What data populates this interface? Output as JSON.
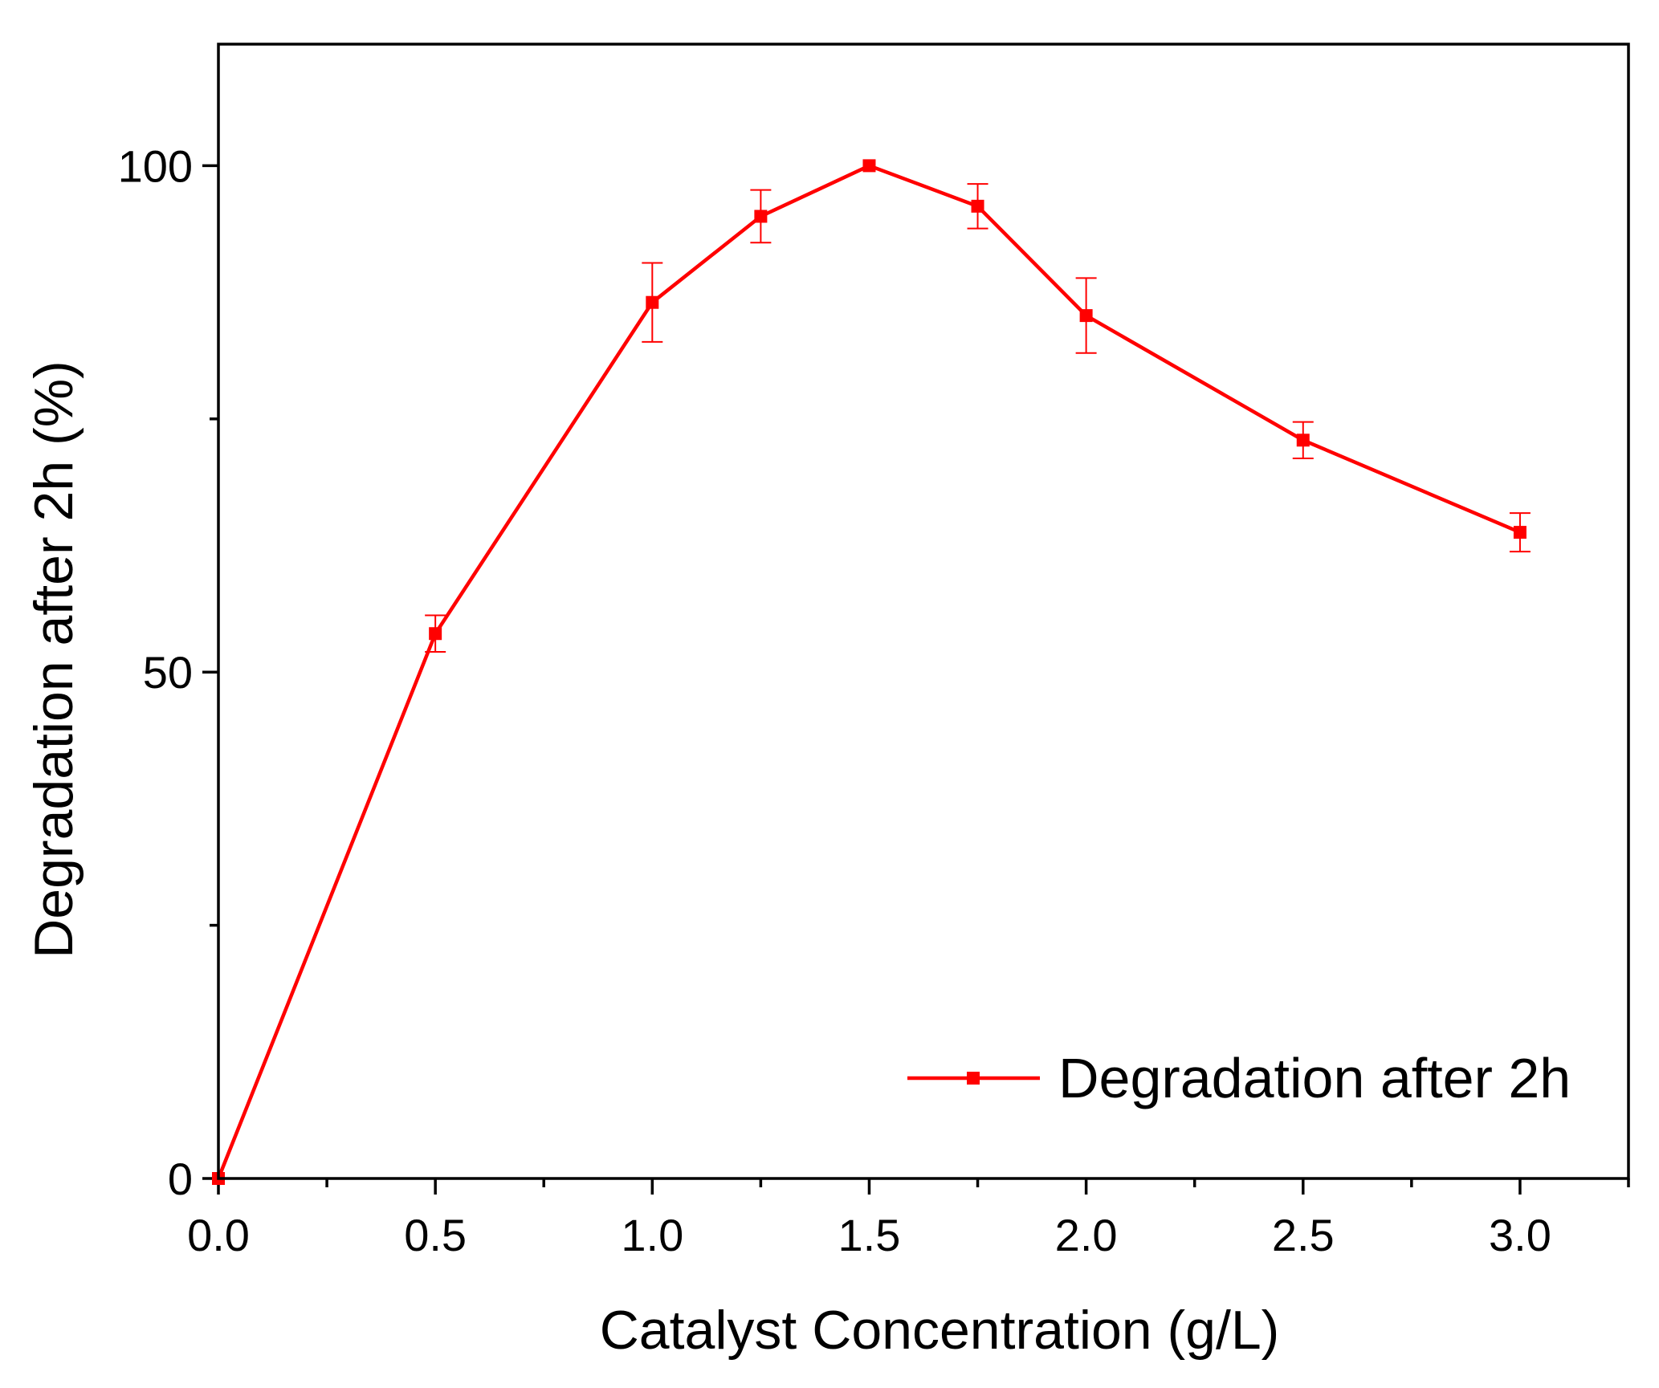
{
  "chart_data": {
    "type": "line",
    "title": "",
    "xlabel": "Catalyst Concentration (g/L)",
    "ylabel": "Degradation after 2h (%)",
    "xlim": [
      0.0,
      3.25
    ],
    "ylim": [
      0,
      112
    ],
    "x_ticks": [
      0.0,
      0.5,
      1.0,
      1.5,
      2.0,
      2.5,
      3.0
    ],
    "x_tick_labels": [
      "0.0",
      "0.5",
      "1.0",
      "1.5",
      "2.0",
      "2.5",
      "3.0"
    ],
    "x_minor_ticks": [
      0.25,
      0.75,
      1.25,
      1.75,
      2.25,
      2.75,
      3.25
    ],
    "y_ticks": [
      0,
      50,
      100
    ],
    "y_tick_labels": [
      "0",
      "50",
      "100"
    ],
    "y_minor_ticks": [
      25,
      75
    ],
    "grid": false,
    "legend_position": "bottom-right",
    "series": [
      {
        "name": "Degradation after 2h",
        "color": "#ff0000",
        "marker": "square",
        "x": [
          0.0,
          0.5,
          1.0,
          1.25,
          1.5,
          1.75,
          2.0,
          2.5,
          3.0
        ],
        "y": [
          0,
          53.8,
          86.5,
          95.0,
          100,
          96.0,
          85.2,
          72.9,
          63.8
        ],
        "error": [
          0,
          1.8,
          3.9,
          2.6,
          0,
          2.2,
          3.7,
          1.8,
          1.9
        ]
      }
    ]
  }
}
